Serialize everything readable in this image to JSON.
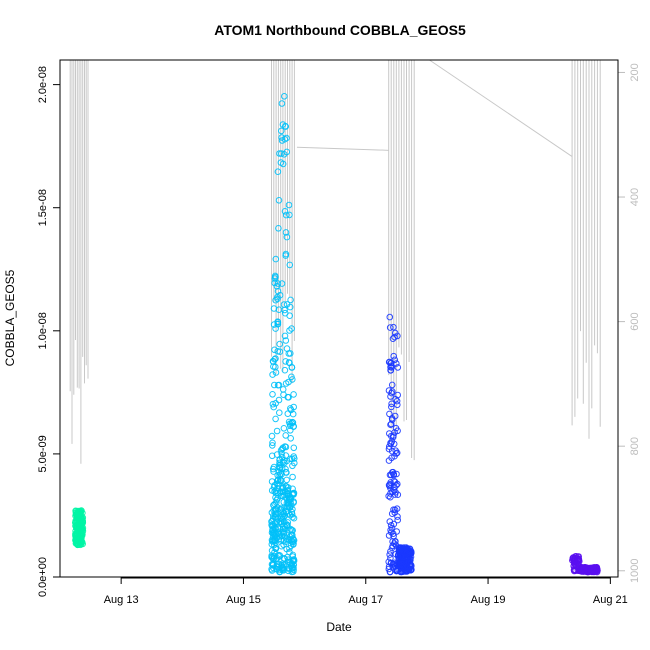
{
  "chart_data": {
    "type": "scatter",
    "title": "ATOM1 Northbound COBBLA_GEOS5",
    "xlabel": "Date",
    "ylabel": "COBBLA_GEOS5",
    "xlim": [
      "2016-08-12T00:00",
      "2016-08-21T03:00"
    ],
    "ylim": [
      0,
      2.1e-08
    ],
    "x_ticks": [
      {
        "value": "2016-08-13T00:00",
        "label": "Aug 13"
      },
      {
        "value": "2016-08-15T00:00",
        "label": "Aug 15"
      },
      {
        "value": "2016-08-17T00:00",
        "label": "Aug 17"
      },
      {
        "value": "2016-08-19T00:00",
        "label": "Aug 19"
      },
      {
        "value": "2016-08-21T00:00",
        "label": "Aug 21"
      }
    ],
    "y_ticks": [
      {
        "value": 0,
        "label": "0.0e+00"
      },
      {
        "value": 5e-09,
        "label": "5.0e-09"
      },
      {
        "value": 1e-08,
        "label": "1.0e-08"
      },
      {
        "value": 1.5e-08,
        "label": "1.5e-08"
      },
      {
        "value": 2e-08,
        "label": "2.0e-08"
      }
    ],
    "right_axis": {
      "range": [
        180,
        1010
      ],
      "reversed": true,
      "color": "#bdbdbd",
      "ticks": [
        {
          "value": 200,
          "label": "200"
        },
        {
          "value": 400,
          "label": "400"
        },
        {
          "value": 600,
          "label": "600"
        },
        {
          "value": 800,
          "label": "800"
        },
        {
          "value": 1000,
          "label": "1000"
        }
      ]
    },
    "grid": false,
    "legend": "none",
    "series": [
      {
        "color": "#00f5a5",
        "marker": "open-circle",
        "x_range": [
          "2016-08-12T06:00",
          "2016-08-12T09:00"
        ],
        "y_range": [
          1.3e-09,
          2.7e-09
        ]
      },
      {
        "color": "#00c0f8",
        "marker": "open-circle",
        "x_range": [
          "2016-08-15T11:00",
          "2016-08-15T20:00"
        ],
        "y_range": [
          2e-10,
          2.05e-08
        ]
      },
      {
        "color": "#1b38ff",
        "marker": "open-circle",
        "x_range": [
          "2016-08-17T09:00",
          "2016-08-17T18:00"
        ],
        "y_range": [
          2e-10,
          1.08e-08
        ]
      },
      {
        "color": "#5a10f0",
        "marker": "open-circle",
        "x_range": [
          "2016-08-20T09:00",
          "2016-08-20T19:00"
        ],
        "y_range": [
          2e-10,
          8.5e-10
        ]
      }
    ],
    "altitude_line": {
      "color": "#c8c8c8",
      "segments": [
        {
          "x_range": [
            "2016-08-12T04:00",
            "2016-08-12T11:00"
          ],
          "y_range": [
            180,
            870
          ]
        },
        {
          "x_range": [
            "2016-08-15T11:00",
            "2016-08-15T20:00"
          ],
          "y_range": [
            180,
            720
          ]
        },
        {
          "x_range": [
            "2016-08-17T09:00",
            "2016-08-17T19:00"
          ],
          "y_range": [
            180,
            860
          ]
        },
        {
          "x_range": [
            "2016-08-20T09:00",
            "2016-08-20T20:00"
          ],
          "y_range": [
            180,
            840
          ]
        }
      ],
      "connectors": [
        {
          "x": [
            "2016-08-15T21:00",
            "2016-08-17T09:00"
          ],
          "y": [
            320,
            325
          ]
        },
        {
          "x": [
            "2016-08-18T01:00",
            "2016-08-20T09:00"
          ],
          "y": [
            180,
            335
          ]
        }
      ]
    }
  }
}
